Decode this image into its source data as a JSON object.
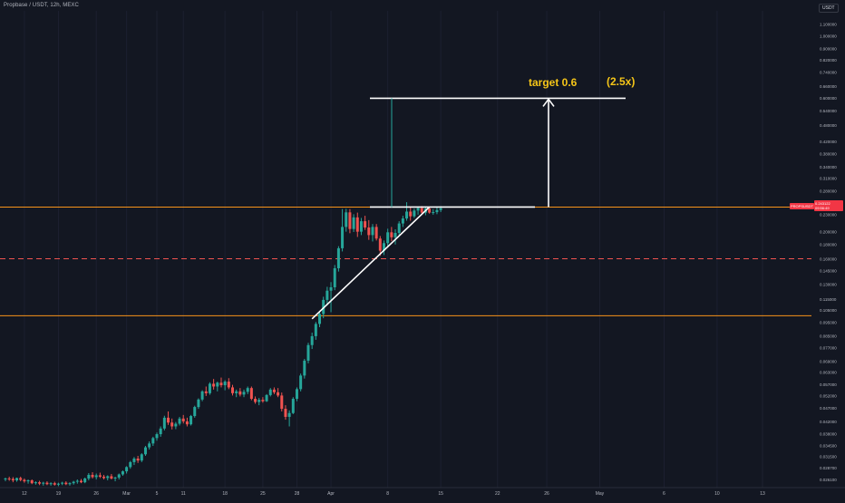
{
  "header": {
    "title": "Propbase / USDT, 12h, MEXC",
    "currency": "USDT"
  },
  "annotations": {
    "target_label": "target 0.6",
    "multiplier_label": "(2.5x)"
  },
  "price_tag": {
    "symbol": "PROPSUSDT",
    "price": "0.243122",
    "countdown": "09:56:49"
  },
  "colors": {
    "background": "#131722",
    "bull": "#26a69a",
    "bear": "#ef5350",
    "resistance_line": "#f7931a",
    "target_text": "#f5c518",
    "annotation": "#ffffff",
    "price_tag": "#f23645"
  },
  "chart_data": {
    "type": "candlestick",
    "title": "Propbase / USDT, 12h, MEXC",
    "scale": "log",
    "ylim": [
      0.0245,
      1.23
    ],
    "y_ticks": [
      {
        "value": 1.1,
        "label": "1.100000"
      },
      {
        "value": 1.0,
        "label": "1.000000"
      },
      {
        "value": 0.9,
        "label": "0.900000"
      },
      {
        "value": 0.82,
        "label": "0.820000"
      },
      {
        "value": 0.74,
        "label": "0.740000"
      },
      {
        "value": 0.66,
        "label": "0.660000"
      },
      {
        "value": 0.6,
        "label": "0.600000"
      },
      {
        "value": 0.54,
        "label": "0.540000"
      },
      {
        "value": 0.48,
        "label": "0.480000"
      },
      {
        "value": 0.42,
        "label": "0.420000"
      },
      {
        "value": 0.38,
        "label": "0.380000"
      },
      {
        "value": 0.34,
        "label": "0.340000"
      },
      {
        "value": 0.31,
        "label": "0.310000"
      },
      {
        "value": 0.28,
        "label": "0.280000"
      },
      {
        "value": 0.25,
        "label": "0.250000"
      },
      {
        "value": 0.23,
        "label": "0.230000"
      },
      {
        "value": 0.2,
        "label": "0.200000"
      },
      {
        "value": 0.18,
        "label": "0.180000"
      },
      {
        "value": 0.16,
        "label": "0.160000"
      },
      {
        "value": 0.145,
        "label": "0.145000"
      },
      {
        "value": 0.13,
        "label": "0.130000"
      },
      {
        "value": 0.115,
        "label": "0.115000"
      },
      {
        "value": 0.105,
        "label": "0.105000"
      },
      {
        "value": 0.095,
        "label": "0.095000"
      },
      {
        "value": 0.085,
        "label": "0.085000"
      },
      {
        "value": 0.077,
        "label": "0.077000"
      },
      {
        "value": 0.069,
        "label": "0.069000"
      },
      {
        "value": 0.063,
        "label": "0.063000"
      },
      {
        "value": 0.057,
        "label": "0.057000"
      },
      {
        "value": 0.052,
        "label": "0.052000"
      },
      {
        "value": 0.047,
        "label": "0.047000"
      },
      {
        "value": 0.042,
        "label": "0.042000"
      },
      {
        "value": 0.038,
        "label": "0.038000"
      },
      {
        "value": 0.0345,
        "label": "0.034500"
      },
      {
        "value": 0.0315,
        "label": "0.031500"
      },
      {
        "value": 0.0287,
        "label": "0.028700"
      },
      {
        "value": 0.0261,
        "label": "0.026100"
      }
    ],
    "x_ticks": [
      {
        "index": 5,
        "label": "12"
      },
      {
        "index": 14,
        "label": "19"
      },
      {
        "index": 24,
        "label": "26"
      },
      {
        "index": 32,
        "label": "Mar"
      },
      {
        "index": 40,
        "label": "5"
      },
      {
        "index": 47,
        "label": "11"
      },
      {
        "index": 58,
        "label": "18"
      },
      {
        "index": 68,
        "label": "25"
      },
      {
        "index": 77,
        "label": "28"
      },
      {
        "index": 86,
        "label": "Apr"
      },
      {
        "index": 101,
        "label": "8"
      },
      {
        "index": 115,
        "label": "15"
      },
      {
        "index": 130,
        "label": "22"
      },
      {
        "index": 143,
        "label": "26"
      },
      {
        "index": 157,
        "label": "May"
      },
      {
        "index": 174,
        "label": "6"
      },
      {
        "index": 188,
        "label": "10"
      },
      {
        "index": 200,
        "label": "13"
      }
    ],
    "candles": [
      [
        0.0262,
        0.0266,
        0.0258,
        0.0264
      ],
      [
        0.0264,
        0.0268,
        0.0259,
        0.0263
      ],
      [
        0.0263,
        0.0267,
        0.0256,
        0.026
      ],
      [
        0.026,
        0.0266,
        0.0257,
        0.0265
      ],
      [
        0.0265,
        0.0268,
        0.0258,
        0.0261
      ],
      [
        0.0261,
        0.0264,
        0.0255,
        0.0258
      ],
      [
        0.0258,
        0.0262,
        0.0253,
        0.026
      ],
      [
        0.026,
        0.0262,
        0.0252,
        0.0254
      ],
      [
        0.0254,
        0.0258,
        0.0251,
        0.0256
      ],
      [
        0.0256,
        0.0259,
        0.025,
        0.0253
      ],
      [
        0.0253,
        0.0257,
        0.0249,
        0.0255
      ],
      [
        0.0255,
        0.0258,
        0.025,
        0.0252
      ],
      [
        0.0252,
        0.0256,
        0.0249,
        0.0254
      ],
      [
        0.0254,
        0.0257,
        0.0249,
        0.0251
      ],
      [
        0.0251,
        0.0255,
        0.0248,
        0.0253
      ],
      [
        0.0253,
        0.0257,
        0.025,
        0.0255
      ],
      [
        0.0255,
        0.0258,
        0.025,
        0.0252
      ],
      [
        0.0252,
        0.0256,
        0.0249,
        0.0254
      ],
      [
        0.0254,
        0.0259,
        0.0251,
        0.0257
      ],
      [
        0.0257,
        0.0262,
        0.0253,
        0.0259
      ],
      [
        0.0259,
        0.0263,
        0.0254,
        0.0256
      ],
      [
        0.0256,
        0.0266,
        0.0254,
        0.0264
      ],
      [
        0.0264,
        0.0276,
        0.026,
        0.0272
      ],
      [
        0.0272,
        0.0278,
        0.0264,
        0.0267
      ],
      [
        0.0267,
        0.0275,
        0.0262,
        0.0271
      ],
      [
        0.0271,
        0.0277,
        0.0265,
        0.0268
      ],
      [
        0.0268,
        0.0272,
        0.0262,
        0.0265
      ],
      [
        0.0265,
        0.0271,
        0.026,
        0.0269
      ],
      [
        0.0269,
        0.0274,
        0.0262,
        0.0264
      ],
      [
        0.0264,
        0.0268,
        0.0258,
        0.0266
      ],
      [
        0.0266,
        0.0275,
        0.0262,
        0.0273
      ],
      [
        0.0273,
        0.0282,
        0.027,
        0.028
      ],
      [
        0.028,
        0.0292,
        0.0275,
        0.029
      ],
      [
        0.029,
        0.0305,
        0.0286,
        0.0302
      ],
      [
        0.0302,
        0.0315,
        0.0295,
        0.0311
      ],
      [
        0.0311,
        0.0318,
        0.03,
        0.0306
      ],
      [
        0.0306,
        0.0325,
        0.0302,
        0.0322
      ],
      [
        0.0322,
        0.0345,
        0.0318,
        0.0341
      ],
      [
        0.0341,
        0.0358,
        0.0335,
        0.0352
      ],
      [
        0.0352,
        0.0372,
        0.0345,
        0.0368
      ],
      [
        0.0368,
        0.0385,
        0.036,
        0.038
      ],
      [
        0.038,
        0.0405,
        0.0372,
        0.0398
      ],
      [
        0.0398,
        0.0442,
        0.0392,
        0.0435
      ],
      [
        0.0435,
        0.0458,
        0.041,
        0.0418
      ],
      [
        0.0418,
        0.0432,
        0.0395,
        0.0405
      ],
      [
        0.0405,
        0.042,
        0.0396,
        0.0414
      ],
      [
        0.0414,
        0.0438,
        0.0408,
        0.0432
      ],
      [
        0.0432,
        0.0445,
        0.0415,
        0.0422
      ],
      [
        0.0422,
        0.0435,
        0.0405,
        0.0412
      ],
      [
        0.0412,
        0.0445,
        0.0408,
        0.0441
      ],
      [
        0.0441,
        0.048,
        0.0435,
        0.0475
      ],
      [
        0.0475,
        0.051,
        0.0468,
        0.0505
      ],
      [
        0.0505,
        0.0545,
        0.0498,
        0.054
      ],
      [
        0.054,
        0.0562,
        0.052,
        0.0532
      ],
      [
        0.0532,
        0.0582,
        0.0525,
        0.0575
      ],
      [
        0.0575,
        0.0598,
        0.0548,
        0.0562
      ],
      [
        0.0562,
        0.0585,
        0.054,
        0.058
      ],
      [
        0.058,
        0.0605,
        0.0558,
        0.0568
      ],
      [
        0.0568,
        0.0592,
        0.0545,
        0.0585
      ],
      [
        0.0585,
        0.0602,
        0.055,
        0.0558
      ],
      [
        0.0558,
        0.057,
        0.0522,
        0.0532
      ],
      [
        0.0532,
        0.0548,
        0.0515,
        0.054
      ],
      [
        0.054,
        0.0555,
        0.0518,
        0.0526
      ],
      [
        0.0526,
        0.0548,
        0.0515,
        0.0538
      ],
      [
        0.0538,
        0.0562,
        0.0528,
        0.0555
      ],
      [
        0.0555,
        0.0562,
        0.0502,
        0.0508
      ],
      [
        0.0508,
        0.0518,
        0.0488,
        0.0495
      ],
      [
        0.0495,
        0.0512,
        0.0482,
        0.0504
      ],
      [
        0.0504,
        0.0515,
        0.0492,
        0.0498
      ],
      [
        0.0498,
        0.0528,
        0.0495,
        0.0524
      ],
      [
        0.0524,
        0.0555,
        0.0518,
        0.0548
      ],
      [
        0.0548,
        0.0558,
        0.0528,
        0.0536
      ],
      [
        0.0536,
        0.0555,
        0.0515,
        0.0522
      ],
      [
        0.0522,
        0.0535,
        0.0458,
        0.0468
      ],
      [
        0.0468,
        0.0482,
        0.0428,
        0.0438
      ],
      [
        0.0438,
        0.0462,
        0.0405,
        0.0452
      ],
      [
        0.0452,
        0.0515,
        0.0448,
        0.0508
      ],
      [
        0.0508,
        0.0558,
        0.0498,
        0.055
      ],
      [
        0.055,
        0.0625,
        0.054,
        0.0615
      ],
      [
        0.0615,
        0.0705,
        0.06,
        0.0695
      ],
      [
        0.0695,
        0.0805,
        0.068,
        0.079
      ],
      [
        0.079,
        0.0875,
        0.0765,
        0.085
      ],
      [
        0.085,
        0.0955,
        0.0825,
        0.094
      ],
      [
        0.094,
        0.1045,
        0.0915,
        0.102
      ],
      [
        0.102,
        0.1175,
        0.0985,
        0.1145
      ],
      [
        0.1145,
        0.1275,
        0.1095,
        0.1235
      ],
      [
        0.1235,
        0.1325,
        0.1035,
        0.127
      ],
      [
        0.127,
        0.1525,
        0.124,
        0.1485
      ],
      [
        0.1485,
        0.178,
        0.1445,
        0.175
      ],
      [
        0.175,
        0.2415,
        0.1705,
        0.2085
      ],
      [
        0.2085,
        0.242,
        0.2005,
        0.235
      ],
      [
        0.235,
        0.2415,
        0.198,
        0.205
      ],
      [
        0.205,
        0.2315,
        0.2,
        0.2255
      ],
      [
        0.2255,
        0.2345,
        0.192,
        0.2005
      ],
      [
        0.2005,
        0.2245,
        0.195,
        0.2185
      ],
      [
        0.2185,
        0.2285,
        0.2035,
        0.2075
      ],
      [
        0.2075,
        0.2205,
        0.1875,
        0.195
      ],
      [
        0.195,
        0.2135,
        0.185,
        0.2085
      ],
      [
        0.2085,
        0.2135,
        0.1865,
        0.1895
      ],
      [
        0.1895,
        0.1935,
        0.1645,
        0.1715
      ],
      [
        0.1715,
        0.1865,
        0.1655,
        0.1825
      ],
      [
        0.1825,
        0.2055,
        0.1765,
        0.1995
      ],
      [
        0.1995,
        0.2085,
        0.1855,
        0.1915
      ],
      [
        0.1915,
        0.2045,
        0.1805,
        0.1985
      ],
      [
        0.1985,
        0.2185,
        0.1945,
        0.2145
      ],
      [
        0.2145,
        0.2285,
        0.2085,
        0.2235
      ],
      [
        0.2235,
        0.2555,
        0.2195,
        0.2365
      ],
      [
        0.2365,
        0.2455,
        0.2195,
        0.2275
      ],
      [
        0.2275,
        0.2425,
        0.2245,
        0.2385
      ],
      [
        0.2385,
        0.2455,
        0.2305,
        0.2435
      ],
      [
        0.2435,
        0.2475,
        0.2315,
        0.2345
      ],
      [
        0.2345,
        0.2465,
        0.2295,
        0.2425
      ],
      [
        0.2425,
        0.2455,
        0.2325,
        0.2345
      ],
      [
        0.2345,
        0.2415,
        0.2305,
        0.2355
      ],
      [
        0.2355,
        0.2445,
        0.2315,
        0.2395
      ],
      [
        0.2395,
        0.2475,
        0.2355,
        0.2431
      ]
    ],
    "horizontal_lines": [
      {
        "value": 0.2455,
        "style": "solid",
        "color": "#f7931a"
      },
      {
        "value": 0.1005,
        "style": "solid",
        "color": "#f7931a"
      },
      {
        "value": 0.1605,
        "style": "dashed",
        "color": "#ef5350"
      }
    ],
    "annotations": [
      {
        "text": "target 0.6"
      },
      {
        "text": "(2.5x)"
      }
    ]
  }
}
